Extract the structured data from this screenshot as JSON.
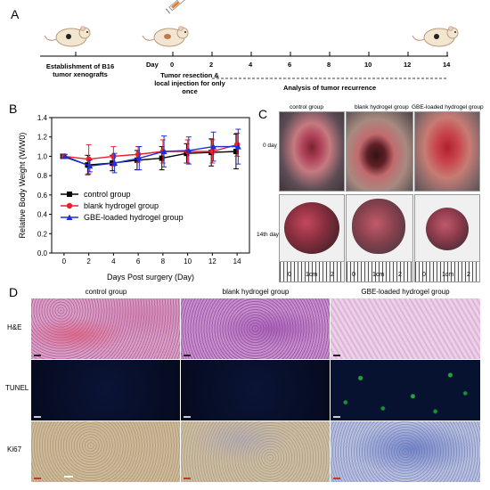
{
  "panels": {
    "a": "A",
    "b": "B",
    "c": "C",
    "d": "D"
  },
  "timeline": {
    "day_label": "Day",
    "days": [
      "0",
      "2",
      "4",
      "6",
      "8",
      "10",
      "12",
      "14"
    ],
    "establishment": "Establishment of B16 tumor xenografts",
    "establishment_line1": "Establishment of B16",
    "establishment_line2": "tumor xenografts",
    "resection_line1": "Tumor resection &",
    "resection_line2": "local injection for only",
    "resection_line3": "once",
    "analysis": "Analysis of tumor recurrence"
  },
  "chart_data": {
    "type": "line",
    "xlabel": "Days Post surgery (Day)",
    "ylabel": "Relative Body Weight (W/W0)",
    "x": [
      0,
      2,
      4,
      6,
      8,
      10,
      12,
      14
    ],
    "xlim": [
      -1,
      15
    ],
    "ylim": [
      0.0,
      1.4
    ],
    "yticks": [
      "0.0",
      "0.2",
      "0.4",
      "0.6",
      "0.8",
      "1.0",
      "1.2",
      "1.4"
    ],
    "xticks": [
      "0",
      "2",
      "4",
      "6",
      "8",
      "10",
      "12",
      "14"
    ],
    "legend_position": "center-left",
    "series": [
      {
        "name": "control group",
        "color": "#000000",
        "marker": "square",
        "values": [
          1.0,
          0.91,
          0.93,
          0.96,
          0.98,
          1.03,
          1.04,
          1.05
        ],
        "errors": [
          0.02,
          0.1,
          0.08,
          0.1,
          0.12,
          0.1,
          0.14,
          0.18
        ]
      },
      {
        "name": "blank hydrogel group",
        "color": "#e8202a",
        "marker": "circle",
        "values": [
          1.0,
          0.97,
          1.0,
          1.02,
          1.05,
          1.05,
          1.05,
          1.12
        ],
        "errors": [
          0.02,
          0.15,
          0.1,
          0.08,
          0.12,
          0.12,
          0.12,
          0.12
        ]
      },
      {
        "name": "GBE-loaded hydrogel group",
        "color": "#1f2fd6",
        "marker": "triangle",
        "values": [
          1.0,
          0.9,
          0.93,
          0.98,
          1.05,
          1.06,
          1.1,
          1.1
        ],
        "errors": [
          0.02,
          0.06,
          0.1,
          0.12,
          0.16,
          0.14,
          0.15,
          0.18
        ]
      }
    ]
  },
  "photos": {
    "groups": [
      "control group",
      "blank hydrogel group",
      "GBE-loaded hydrogel group"
    ],
    "rows": [
      "0 day",
      "14th day"
    ],
    "ruler_labels": [
      "0",
      "1cm",
      "2"
    ]
  },
  "histology": {
    "columns": [
      "control group",
      "blank hydrogel group",
      "GBE-loaded hydrogel group"
    ],
    "rows": [
      "H&E",
      "TUNEL",
      "Ki67"
    ]
  }
}
